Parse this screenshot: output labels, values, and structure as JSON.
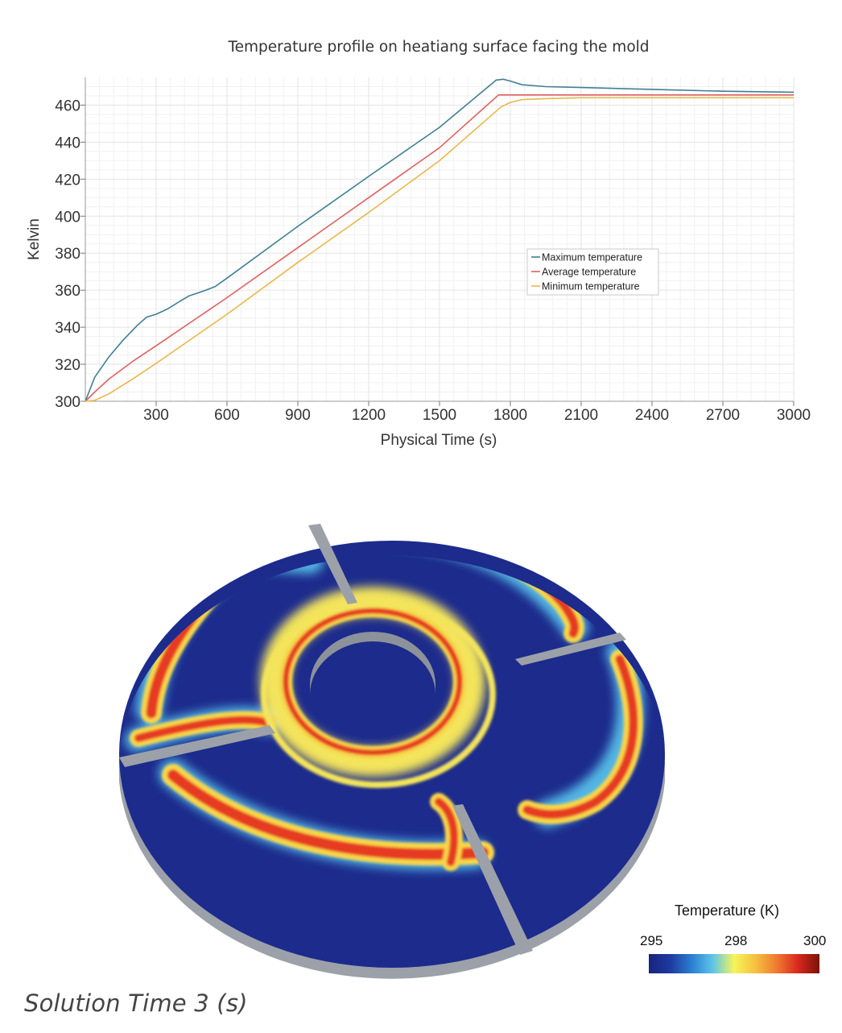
{
  "chart_data": [
    {
      "type": "line",
      "title": "Temperature profile on heatiang surface facing the mold",
      "xlabel": "Physical Time (s)",
      "ylabel": "Kelvin",
      "xlim": [
        0,
        3000
      ],
      "ylim": [
        300,
        475
      ],
      "xticks": [
        "300",
        "600",
        "900",
        "1200",
        "1500",
        "1800",
        "2100",
        "2400",
        "2700",
        "3000"
      ],
      "yticks": [
        "300",
        "320",
        "340",
        "360",
        "380",
        "400",
        "420",
        "440",
        "460"
      ],
      "grid": true,
      "legend_position": "center-right",
      "series": [
        {
          "name": "Maximum temperature",
          "color": "#3f7f94",
          "x": [
            0,
            40,
            100,
            160,
            220,
            260,
            300,
            350,
            400,
            440,
            500,
            550,
            600,
            900,
            1200,
            1500,
            1740,
            1770,
            1800,
            1850,
            1950,
            2100,
            2400,
            2700,
            3000
          ],
          "y": [
            300,
            313,
            324,
            333,
            341,
            345.5,
            347,
            350,
            354,
            357,
            359.5,
            362,
            366.5,
            394.5,
            421.5,
            448,
            473.5,
            474,
            473,
            471,
            470,
            469.5,
            468.5,
            467.5,
            467
          ]
        },
        {
          "name": "Average temperature",
          "color": "#e06060",
          "x": [
            0,
            40,
            100,
            200,
            300,
            600,
            900,
            1200,
            1500,
            1750,
            1800,
            2100,
            2400,
            2700,
            3000
          ],
          "y": [
            300,
            305,
            312,
            321.5,
            330,
            356,
            383,
            410,
            437,
            465.5,
            465.5,
            465.5,
            465.5,
            465.5,
            465.5
          ]
        },
        {
          "name": "Minimum temperature",
          "color": "#e8b84a",
          "x": [
            0,
            40,
            100,
            200,
            300,
            600,
            900,
            1200,
            1500,
            1760,
            1800,
            1850,
            1950,
            2100,
            2400,
            2700,
            3000
          ],
          "y": [
            300,
            300.5,
            304,
            312,
            320.5,
            347,
            375,
            402,
            430,
            459,
            461.5,
            463,
            463.5,
            464,
            464,
            464,
            464
          ]
        }
      ]
    },
    {
      "type": "heatmap",
      "title": "Temperature (K)",
      "colorbar_ticks": [
        "295",
        "298",
        "300"
      ],
      "colormap": [
        "#1a237e",
        "#1e3aa0",
        "#2a7fd0",
        "#5fc4e8",
        "#f5f55a",
        "#f5c040",
        "#f07a30",
        "#d8281e",
        "#7a1208"
      ]
    }
  ],
  "caption": "Solution Time 3 (s)",
  "colors": {
    "disk_base": "#1c2b8c",
    "disk_side": "#9aa0a8",
    "hot": "#e63a20",
    "warm": "#f5d440",
    "cool": "#5fc4e8"
  }
}
